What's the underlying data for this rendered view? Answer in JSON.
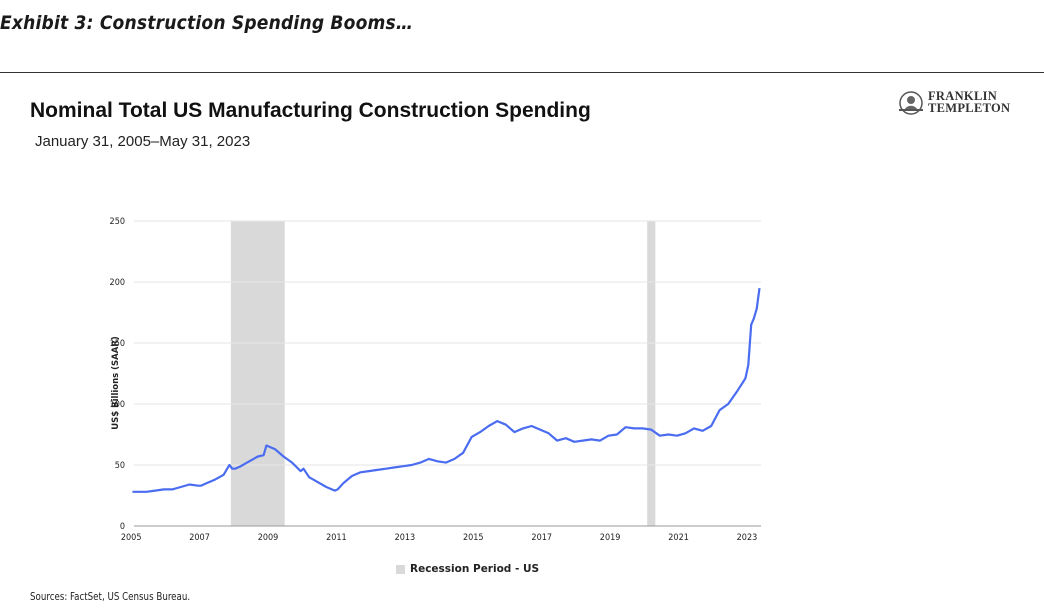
{
  "header": {
    "exhibit": "Exhibit 3: Construction Spending Booms…"
  },
  "brand": {
    "line1": "FRANKLIN",
    "line2": "TEMPLETON",
    "icon": "franklin-portrait-icon"
  },
  "footer": {
    "source": "Sources: FactSet, US Census Bureau."
  },
  "colors": {
    "series": "#4a6cf0",
    "recession": "#d9d9d9",
    "grid": "#e6e6e6"
  },
  "chart_data": {
    "type": "line",
    "title": "Nominal Total US Manufacturing Construction Spending",
    "subtitle": "January 31, 2005–May 31, 2023",
    "xlabel": "",
    "ylabel": "US$ Billions (SAAR)",
    "ylim": [
      0,
      250
    ],
    "yticks": [
      0,
      50,
      100,
      150,
      200,
      250
    ],
    "xlim": [
      "2005-01-31",
      "2023-05-31"
    ],
    "xticks": [
      "2005",
      "2007",
      "2009",
      "2011",
      "2013",
      "2015",
      "2017",
      "2019",
      "2021",
      "2023"
    ],
    "grid": true,
    "legend": {
      "position": "bottom",
      "label": "Recession Period - US"
    },
    "recessions": [
      {
        "start": "2007-12",
        "end": "2009-06"
      },
      {
        "start": "2020-02",
        "end": "2020-04"
      }
    ],
    "series": [
      {
        "x": [
          "2005-01",
          "2005-03",
          "2005-06",
          "2005-09",
          "2005-12",
          "2006-03",
          "2006-06",
          "2006-09",
          "2006-12",
          "2007-01",
          "2007-03",
          "2007-06",
          "2007-09",
          "2007-11",
          "2007-12",
          "2008-01",
          "2008-03",
          "2008-06",
          "2008-09",
          "2008-11",
          "2008-12",
          "2009-03",
          "2009-06",
          "2009-09",
          "2009-12",
          "2010-01",
          "2010-03",
          "2010-06",
          "2010-09",
          "2010-12",
          "2011-01",
          "2011-03",
          "2011-06",
          "2011-09",
          "2011-12",
          "2012-03",
          "2012-06",
          "2012-09",
          "2012-12",
          "2013-03",
          "2013-06",
          "2013-09",
          "2013-12",
          "2014-03",
          "2014-06",
          "2014-09",
          "2014-12",
          "2015-03",
          "2015-06",
          "2015-09",
          "2015-12",
          "2016-03",
          "2016-06",
          "2016-09",
          "2016-12",
          "2017-03",
          "2017-06",
          "2017-09",
          "2017-12",
          "2018-03",
          "2018-06",
          "2018-09",
          "2018-12",
          "2019-03",
          "2019-06",
          "2019-09",
          "2019-12",
          "2020-03",
          "2020-06",
          "2020-09",
          "2020-12",
          "2021-03",
          "2021-06",
          "2021-09",
          "2021-12",
          "2022-03",
          "2022-06",
          "2022-09",
          "2022-12",
          "2023-01",
          "2023-02",
          "2023-03",
          "2023-04",
          "2023-05"
        ],
        "y": [
          28,
          28,
          28,
          29,
          30,
          30,
          32,
          34,
          33,
          33,
          35,
          38,
          42,
          50,
          47,
          47,
          49,
          53,
          57,
          58,
          66,
          63,
          57,
          52,
          45,
          47,
          40,
          36,
          32,
          29,
          30,
          35,
          41,
          44,
          45,
          46,
          47,
          48,
          49,
          50,
          52,
          55,
          53,
          52,
          55,
          60,
          73,
          77,
          82,
          86,
          83,
          77,
          80,
          82,
          79,
          76,
          70,
          72,
          69,
          70,
          71,
          70,
          74,
          75,
          81,
          80,
          80,
          79,
          74,
          75,
          74,
          76,
          80,
          78,
          82,
          95,
          100,
          110,
          121,
          132,
          165,
          170,
          178,
          195
        ]
      }
    ]
  }
}
